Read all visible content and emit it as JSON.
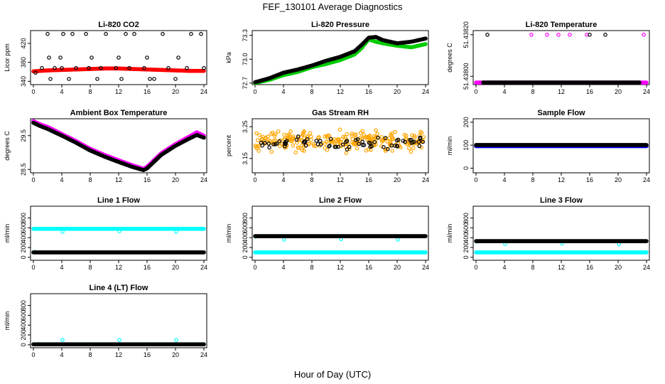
{
  "figure": {
    "title": "FEF_130101  Average Diagnostics",
    "xlabel": "Hour of Day (UTC)"
  },
  "x_ticks": [
    "0",
    "4",
    "8",
    "12",
    "16",
    "20",
    "24"
  ],
  "chart_data": [
    {
      "type": "scatter",
      "title": "Li-820 CO2",
      "ylabel": "Licor ppm",
      "y_ticks": [
        "340",
        "380",
        "420"
      ],
      "xlim": [
        0,
        24
      ],
      "ylim": [
        333,
        447
      ],
      "series": [
        {
          "color": "#ff0000",
          "style": "dense",
          "x": [
            0,
            2,
            4,
            6,
            8,
            10,
            12,
            14,
            16,
            18,
            20,
            22,
            24
          ],
          "y": [
            361,
            363,
            364,
            365,
            366,
            367,
            367,
            366,
            365,
            364,
            363,
            362,
            362
          ]
        },
        {
          "color": "#000000",
          "style": "points",
          "x": [
            0.3,
            1.2,
            2.0,
            2.2,
            2.4,
            3.0,
            3.8,
            4.0,
            4.2,
            5.0,
            5.5,
            6.0,
            7.4,
            7.8,
            8.2,
            9.0,
            9.5,
            10.2,
            11.6,
            12.0,
            12.4,
            13.0,
            13.5,
            14.2,
            15.6,
            16.0,
            16.4,
            17.0,
            18.2,
            19.0,
            20.0,
            20.4,
            21.6,
            22.2,
            23.6,
            24.0
          ],
          "y": [
            358,
            368,
            440,
            390,
            345,
            368,
            390,
            368,
            440,
            345,
            440,
            368,
            440,
            368,
            390,
            345,
            368,
            440,
            368,
            390,
            345,
            440,
            368,
            440,
            368,
            390,
            345,
            345,
            440,
            368,
            345,
            390,
            368,
            440,
            440,
            368
          ]
        }
      ]
    },
    {
      "type": "scatter",
      "title": "Li-820 Pressure",
      "ylabel": "kPa",
      "y_ticks": [
        "72.7",
        "73.0",
        "73.3"
      ],
      "xlim": [
        0,
        24
      ],
      "ylim": [
        72.68,
        73.36
      ],
      "series": [
        {
          "color": "#00cc00",
          "style": "dense",
          "x": [
            0,
            2,
            4,
            6,
            8,
            10,
            12,
            14,
            15,
            16,
            17,
            18,
            20,
            22,
            24
          ],
          "y": [
            72.7,
            72.74,
            72.8,
            72.84,
            72.9,
            72.94,
            72.99,
            73.06,
            73.14,
            73.25,
            73.22,
            73.2,
            73.17,
            73.15,
            73.19
          ]
        },
        {
          "color": "#000000",
          "style": "dense",
          "x": [
            0,
            2,
            4,
            6,
            8,
            10,
            12,
            14,
            15,
            16,
            17,
            18,
            20,
            22,
            24
          ],
          "y": [
            72.71,
            72.76,
            72.83,
            72.87,
            72.92,
            72.98,
            73.03,
            73.1,
            73.18,
            73.27,
            73.28,
            73.24,
            73.2,
            73.22,
            73.26
          ]
        }
      ]
    },
    {
      "type": "scatter",
      "title": "Li-820 Temperature",
      "ylabel": "degrees C",
      "y_ticks": [
        "51.43800",
        "51.43820"
      ],
      "xlim": [
        0,
        24
      ],
      "ylim": [
        51.43796,
        51.43822
      ],
      "series": [
        {
          "color": "#ff00ff",
          "style": "dense",
          "x": [
            0,
            1,
            2,
            3,
            4,
            5,
            6,
            7,
            8,
            9,
            10,
            11,
            12,
            13,
            14,
            15,
            16,
            17,
            18,
            19,
            20,
            21,
            22,
            23,
            24
          ],
          "y": [
            51.43797,
            51.43797,
            51.43797,
            51.43797,
            51.43797,
            51.43797,
            51.43797,
            51.43797,
            51.43797,
            51.43797,
            51.43797,
            51.43797,
            51.43797,
            51.43797,
            51.43797,
            51.43797,
            51.43797,
            51.43797,
            51.43797,
            51.43797,
            51.43797,
            51.43797,
            51.43797,
            51.43797,
            51.43797
          ]
        },
        {
          "color": "#ff00ff",
          "style": "points",
          "x": [
            7.8,
            10.0,
            11.6,
            13.2,
            15.6,
            23.6
          ],
          "y": [
            51.4382,
            51.4382,
            51.4382,
            51.4382,
            51.4382,
            51.4382
          ]
        },
        {
          "color": "#000000",
          "style": "points",
          "x": [
            1.6,
            16.0,
            18.2
          ],
          "y": [
            51.4382,
            51.4382,
            51.4382
          ]
        },
        {
          "color": "#000000",
          "style": "dense",
          "x": [
            1,
            3,
            5,
            7,
            9,
            11,
            13,
            15,
            17,
            19,
            21,
            23
          ],
          "y": [
            51.43797,
            51.43797,
            51.43797,
            51.43797,
            51.43797,
            51.43797,
            51.43797,
            51.43797,
            51.43797,
            51.43797,
            51.43797,
            51.43797
          ]
        }
      ]
    },
    {
      "type": "scatter",
      "title": "Ambient Box Temperature",
      "ylabel": "degrees C",
      "y_ticks": [
        "28.5",
        "29.5"
      ],
      "xlim": [
        0,
        24
      ],
      "ylim": [
        28.4,
        30.0
      ],
      "series": [
        {
          "color": "#ff00ff",
          "style": "dense",
          "x": [
            0,
            1,
            2,
            4,
            6,
            8,
            10,
            12,
            14,
            15.5,
            16,
            17,
            18,
            20,
            22,
            23,
            24
          ],
          "y": [
            29.93,
            29.83,
            29.76,
            29.55,
            29.34,
            29.11,
            28.93,
            28.77,
            28.62,
            28.52,
            28.58,
            28.78,
            28.98,
            29.25,
            29.48,
            29.6,
            29.5
          ]
        },
        {
          "color": "#000000",
          "style": "dense",
          "x": [
            0,
            1,
            2,
            4,
            6,
            8,
            10,
            12,
            14,
            15.5,
            16,
            17,
            18,
            20,
            22,
            23,
            24
          ],
          "y": [
            29.88,
            29.78,
            29.7,
            29.5,
            29.29,
            29.06,
            28.88,
            28.72,
            28.57,
            28.48,
            28.53,
            28.73,
            28.93,
            29.2,
            29.42,
            29.52,
            29.44
          ]
        }
      ]
    },
    {
      "type": "scatter",
      "title": "Gas Stream RH",
      "ylabel": "percent",
      "y_ticks": [
        "3.15",
        "3.25"
      ],
      "xlim": [
        0,
        24
      ],
      "ylim": [
        3.105,
        3.275
      ],
      "series": [
        {
          "color": "#ffa500",
          "style": "cloud",
          "center": 3.205,
          "spread": 0.045,
          "x": [
            0,
            24
          ]
        },
        {
          "color": "#000000",
          "style": "cloud",
          "center": 3.2,
          "spread": 0.025,
          "x": [
            0,
            24
          ]
        }
      ]
    },
    {
      "type": "scatter",
      "title": "Sample Flow",
      "ylabel": "ml/min",
      "y_ticks": [
        "0",
        "100",
        "200"
      ],
      "xlim": [
        0,
        24
      ],
      "ylim": [
        -20,
        215
      ],
      "series": [
        {
          "color": "#0000ff",
          "style": "dense",
          "x": [
            0,
            24
          ],
          "y": [
            96,
            96
          ]
        },
        {
          "color": "#000000",
          "style": "dense",
          "x": [
            0,
            24
          ],
          "y": [
            101,
            101
          ]
        }
      ]
    },
    {
      "type": "scatter",
      "title": "Line 1 Flow",
      "ylabel": "ml/min",
      "y_ticks": [
        "0",
        "200",
        "400",
        "600",
        "800"
      ],
      "xlim": [
        0,
        24
      ],
      "ylim": [
        -60,
        1040
      ],
      "series": [
        {
          "color": "#00ffff",
          "style": "dense",
          "x": [
            0,
            24
          ],
          "y": [
            580,
            580
          ]
        },
        {
          "color": "#00ffff",
          "style": "points",
          "x": [
            0.2,
            4.1,
            12.1,
            20.1
          ],
          "y": [
            110,
            520,
            530,
            520
          ]
        },
        {
          "color": "#000000",
          "style": "dense",
          "x": [
            0,
            24
          ],
          "y": [
            100,
            100
          ]
        }
      ]
    },
    {
      "type": "scatter",
      "title": "Line 2 Flow",
      "ylabel": "ml/min",
      "y_ticks": [
        "0",
        "200",
        "400",
        "600",
        "800"
      ],
      "xlim": [
        0,
        24
      ],
      "ylim": [
        -60,
        1040
      ],
      "series": [
        {
          "color": "#00ffff",
          "style": "dense",
          "x": [
            0,
            24
          ],
          "y": [
            100,
            100
          ]
        },
        {
          "color": "#00ffff",
          "style": "points",
          "x": [
            0.1,
            4.1,
            12.1,
            20.1
          ],
          "y": [
            420,
            360,
            370,
            360
          ]
        },
        {
          "color": "#000000",
          "style": "dense",
          "x": [
            0,
            24
          ],
          "y": [
            430,
            430
          ]
        }
      ]
    },
    {
      "type": "scatter",
      "title": "Line 3 Flow",
      "ylabel": "ml/min",
      "y_ticks": [
        "0",
        "200",
        "400",
        "600",
        "800"
      ],
      "xlim": [
        0,
        24
      ],
      "ylim": [
        -60,
        1040
      ],
      "series": [
        {
          "color": "#00ffff",
          "style": "dense",
          "x": [
            0,
            24
          ],
          "y": [
            100,
            100
          ]
        },
        {
          "color": "#00ffff",
          "style": "points",
          "x": [
            0.1,
            4.1,
            12.1,
            20.1
          ],
          "y": [
            320,
            270,
            280,
            270
          ]
        },
        {
          "color": "#000000",
          "style": "dense",
          "x": [
            0,
            24
          ],
          "y": [
            330,
            330
          ]
        }
      ]
    },
    {
      "type": "scatter",
      "title": "Line 4 (LT) Flow",
      "ylabel": "ml/min",
      "y_ticks": [
        "0",
        "200",
        "400",
        "600",
        "800"
      ],
      "xlim": [
        0,
        24
      ],
      "ylim": [
        -60,
        1040
      ],
      "series": [
        {
          "color": "#00ffff",
          "style": "dense",
          "x": [
            0,
            24
          ],
          "y": [
            10,
            10
          ]
        },
        {
          "color": "#00ffff",
          "style": "points",
          "x": [
            4.1,
            12.1,
            20.1
          ],
          "y": [
            100,
            100,
            100
          ]
        },
        {
          "color": "#000000",
          "style": "dense",
          "x": [
            0,
            24
          ],
          "y": [
            10,
            10
          ]
        }
      ]
    }
  ]
}
